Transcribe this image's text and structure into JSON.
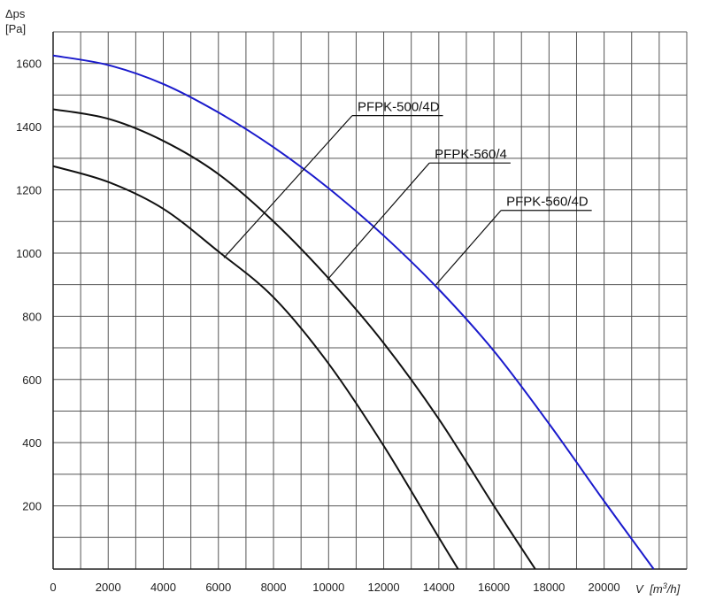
{
  "chart_data": {
    "type": "line",
    "y_label_line1": "Δps",
    "y_label_line2": "[Pa]",
    "x_label": "V [m³/h]",
    "x_label_prefix": "V",
    "x_label_unit_a": "[m",
    "x_label_unit_sup": "3",
    "x_label_unit_b": "/h]",
    "xlim": [
      0,
      23000
    ],
    "ylim": [
      0,
      1700
    ],
    "x_ticks": [
      0,
      2000,
      4000,
      6000,
      8000,
      10000,
      12000,
      14000,
      16000,
      18000,
      20000
    ],
    "y_ticks": [
      200,
      400,
      600,
      800,
      1000,
      1200,
      1400,
      1600
    ],
    "grid": true,
    "colors": {
      "grid": "#555555",
      "series_black": "#111111",
      "series_blue": "#1a1acc"
    },
    "series": [
      {
        "name": "PFPK-500/4D",
        "color": "#111111",
        "x": [
          0,
          2000,
          4000,
          6000,
          8000,
          10000,
          12000,
          14000,
          14700
        ],
        "y": [
          1275,
          1225,
          1140,
          1005,
          860,
          650,
          390,
          100,
          0
        ]
      },
      {
        "name": "PFPK-560/4",
        "color": "#111111",
        "x": [
          0,
          2000,
          4000,
          6000,
          8000,
          10000,
          12000,
          14000,
          16000,
          17500
        ],
        "y": [
          1455,
          1425,
          1355,
          1250,
          1100,
          920,
          715,
          475,
          200,
          0
        ]
      },
      {
        "name": "PFPK-560/4D",
        "color": "#1a1acc",
        "x": [
          0,
          2000,
          4000,
          6000,
          8000,
          10000,
          12000,
          14000,
          16000,
          18000,
          20000,
          21800
        ],
        "y": [
          1625,
          1595,
          1535,
          1445,
          1335,
          1205,
          1055,
          885,
          690,
          460,
          215,
          0
        ]
      }
    ],
    "annotations": [
      {
        "series": "PFPK-500/4D",
        "text": "PFPK-500/4D",
        "point": [
          6200,
          985
        ],
        "label_at": [
          11050,
          1435
        ]
      },
      {
        "series": "PFPK-560/4",
        "text": "PFPK-560/4",
        "point": [
          9950,
          915
        ],
        "label_at": [
          13850,
          1285
        ]
      },
      {
        "series": "PFPK-560/4D",
        "text": "PFPK-560/4D",
        "point": [
          13900,
          900
        ],
        "label_at": [
          16450,
          1135
        ]
      }
    ]
  }
}
